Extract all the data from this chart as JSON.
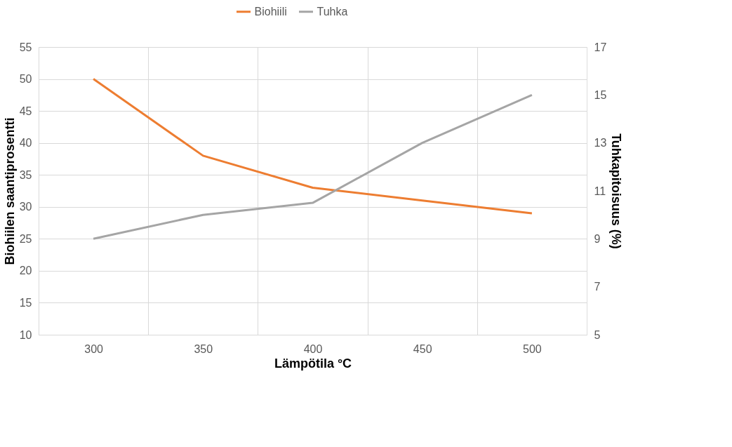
{
  "chart_data": {
    "type": "line",
    "xlabel": "Lämpötila °C",
    "ylabel": "Biohiilen saantiprosentti",
    "y2label": "Tuhkapitoisuus (%)",
    "categories": [
      "300",
      "350",
      "400",
      "450",
      "500"
    ],
    "series": [
      {
        "name": "Biohiili",
        "color": "#ed7d31",
        "values": [
          50,
          38,
          33,
          31,
          29
        ]
      },
      {
        "name": "Tuhka",
        "color": "#a5a5a5",
        "axis": "y2",
        "values": [
          9,
          10,
          10.5,
          13,
          15
        ]
      }
    ],
    "ylim": [
      10,
      55
    ],
    "yticks": [
      10,
      15,
      20,
      25,
      30,
      35,
      40,
      45,
      50,
      55
    ],
    "y2lim": [
      5,
      17
    ],
    "y2ticks": [
      5,
      7,
      9,
      11,
      13,
      15,
      17
    ],
    "grid": true,
    "legend": "top",
    "marker": "none",
    "line_style": "solid"
  }
}
